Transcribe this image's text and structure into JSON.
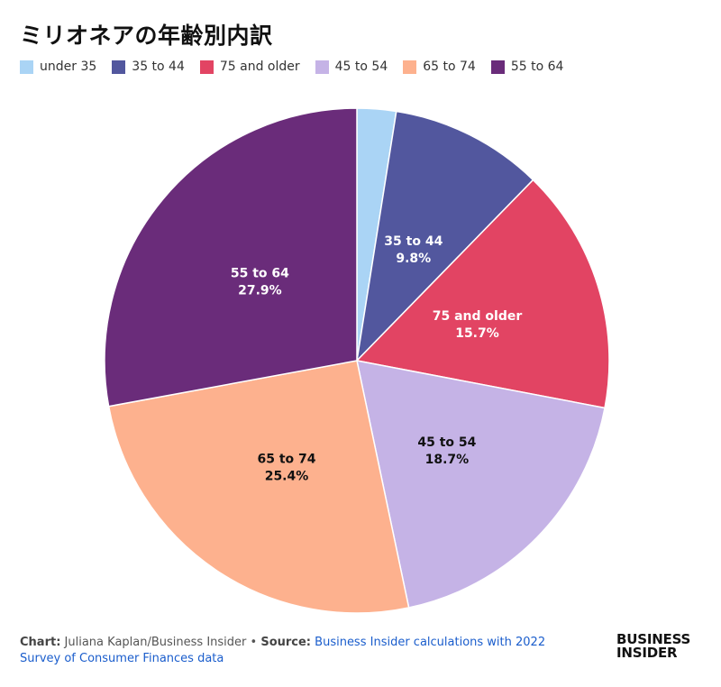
{
  "chart_data": {
    "type": "pie",
    "title": "ミリオネアの年齢別内訳",
    "slices": [
      {
        "label": "under 35",
        "value": 2.5,
        "color": "#aad4f5",
        "label_color": "#111111",
        "show_label": false
      },
      {
        "label": "35 to 44",
        "value": 9.8,
        "color": "#52579e",
        "label_color": "#ffffff",
        "show_label": true
      },
      {
        "label": "75 and older",
        "value": 15.7,
        "color": "#e24463",
        "label_color": "#ffffff",
        "show_label": true
      },
      {
        "label": "45 to 54",
        "value": 18.7,
        "color": "#c5b3e6",
        "label_color": "#111111",
        "show_label": true
      },
      {
        "label": "65 to 74",
        "value": 25.4,
        "color": "#fdb18e",
        "label_color": "#111111",
        "show_label": true
      },
      {
        "label": "55 to 64",
        "value": 27.9,
        "color": "#6a2c7a",
        "label_color": "#ffffff",
        "show_label": true
      }
    ],
    "legend_position": "top-left"
  },
  "footer": {
    "chart_prefix": "Chart:",
    "chart_credit": "Juliana Kaplan/Business Insider",
    "bullet": "•",
    "source_prefix": "Source:",
    "source_text": "Business Insider calculations with 2022 Survey of Consumer Finances data"
  },
  "logo": {
    "line1": "BUSINESS",
    "line2": "INSIDER"
  }
}
